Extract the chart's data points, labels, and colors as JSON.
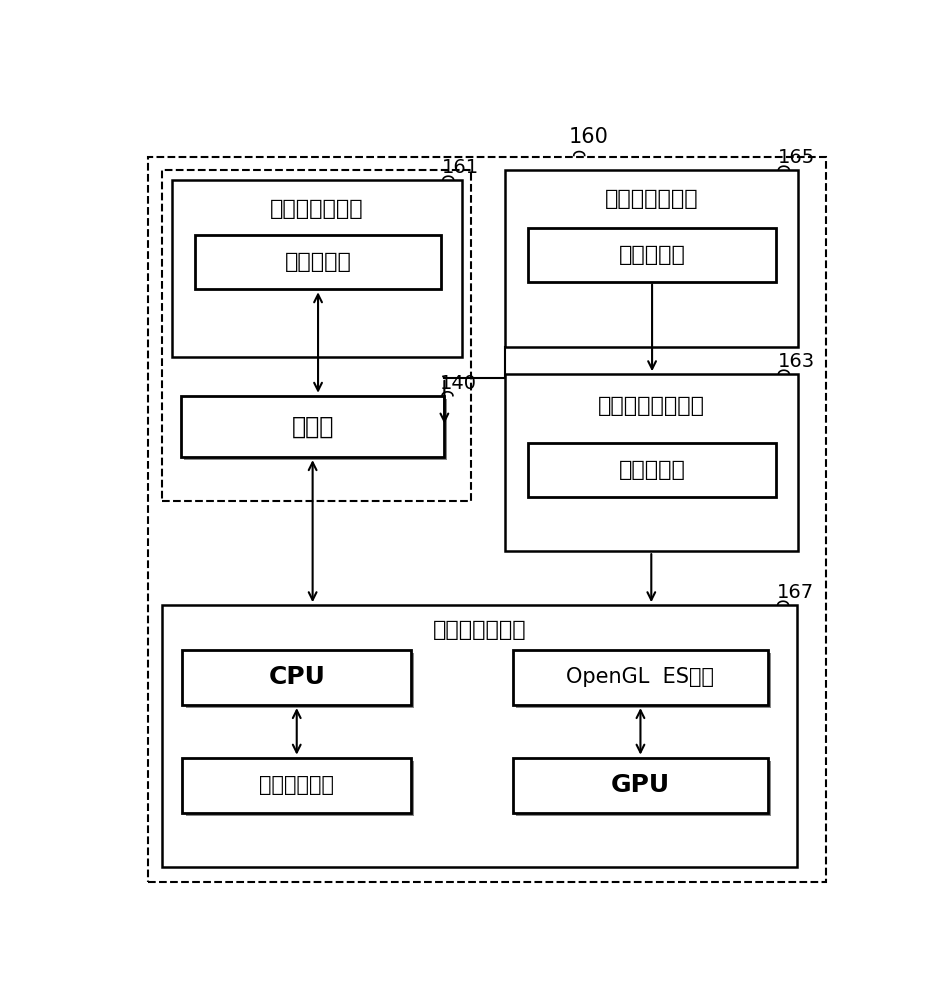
{
  "bg_color": "#ffffff",
  "text_161": "输入事件收集器",
  "text_161_inner": "触摸屏框架",
  "text_165": "输入参数处理器",
  "text_165_inner": "波纹控制器",
  "text_163": "无定形对象处理器",
  "text_163_inner": "波纹渲染器",
  "text_140": "触摸屏",
  "text_167": "锁定功能支持器",
  "text_cpu": "CPU",
  "text_gpu": "GPU",
  "text_opengl": "OpenGL  ES框架",
  "text_general": "一般视图框架",
  "label_160": "160",
  "label_161": "161",
  "label_163": "163",
  "label_165": "165",
  "label_167": "167",
  "label_140": "140"
}
